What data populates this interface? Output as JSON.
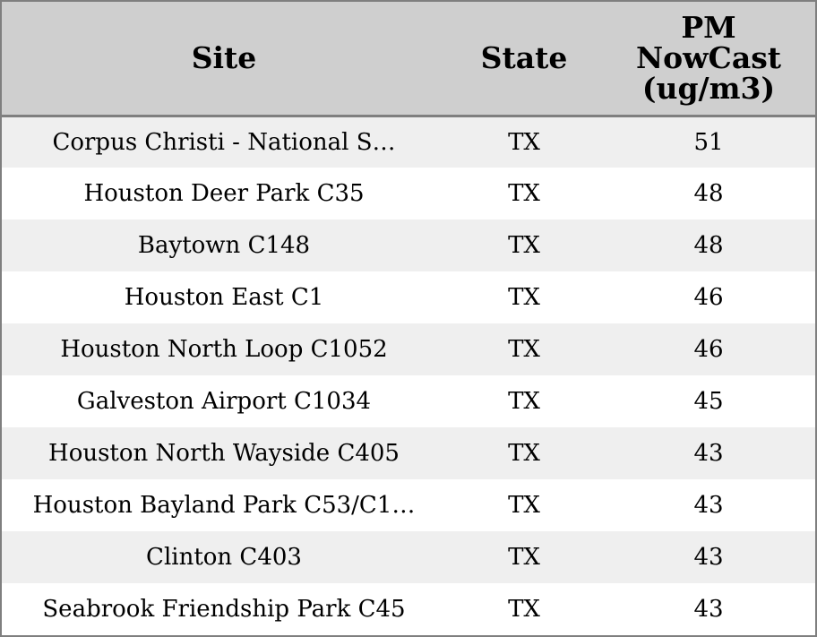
{
  "table": {
    "headers": {
      "site": "Site",
      "state": "State",
      "pm_line1": "PM",
      "pm_line2": "NowCast",
      "pm_line3": "(ug/m3)"
    },
    "rows": [
      {
        "site": "Corpus Christi - National S…",
        "state": "TX",
        "pm": "51"
      },
      {
        "site": "Houston Deer Park C35",
        "state": "TX",
        "pm": "48"
      },
      {
        "site": "Baytown C148",
        "state": "TX",
        "pm": "48"
      },
      {
        "site": "Houston East C1",
        "state": "TX",
        "pm": "46"
      },
      {
        "site": "Houston North Loop C1052",
        "state": "TX",
        "pm": "46"
      },
      {
        "site": "Galveston Airport C1034",
        "state": "TX",
        "pm": "45"
      },
      {
        "site": "Houston North Wayside C405",
        "state": "TX",
        "pm": "43"
      },
      {
        "site": "Houston Bayland Park C53/C1…",
        "state": "TX",
        "pm": "43"
      },
      {
        "site": "Clinton C403",
        "state": "TX",
        "pm": "43"
      },
      {
        "site": "Seabrook Friendship Park C45",
        "state": "TX",
        "pm": "43"
      }
    ]
  },
  "colors": {
    "header_bg": "#cfcfcf",
    "row_alt_bg": "#efefef",
    "row_bg": "#ffffff",
    "border": "#7f7f7f"
  }
}
